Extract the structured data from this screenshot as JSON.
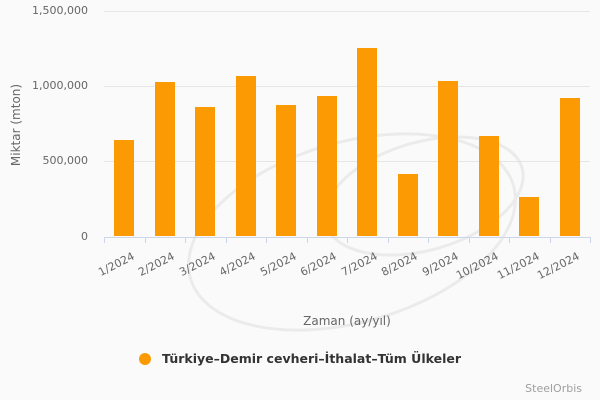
{
  "chart_data": {
    "type": "bar",
    "title": "",
    "categories": [
      "1/2024",
      "2/2024",
      "3/2024",
      "4/2024",
      "5/2024",
      "6/2024",
      "7/2024",
      "8/2024",
      "9/2024",
      "10/2024",
      "11/2024",
      "12/2024"
    ],
    "series": [
      {
        "name": "Türkiye–Demir cevheri–İthalat–Tüm Ülkeler",
        "values": [
          645000,
          1030000,
          860000,
          1065000,
          875000,
          935000,
          1255000,
          415000,
          1035000,
          670000,
          265000,
          920000
        ]
      }
    ],
    "xlabel": "Zaman (ay/yıl)",
    "ylabel": "Miktar (mton)",
    "ylim": [
      0,
      1500000
    ],
    "yticks": [
      0,
      500000,
      1000000,
      1500000
    ],
    "grid": true,
    "legend_position": "bottom"
  },
  "colors": {
    "bar": "#fc9a03",
    "axis": "#ccd6eb",
    "gridline": "#e6e6e6",
    "tick_text": "#666666",
    "legend_text": "#333333",
    "background": "#fafafa",
    "credit_text": "#9e9e9e",
    "watermark": "#e0e0e0"
  },
  "footer": {
    "credit": "SteelOrbis"
  }
}
